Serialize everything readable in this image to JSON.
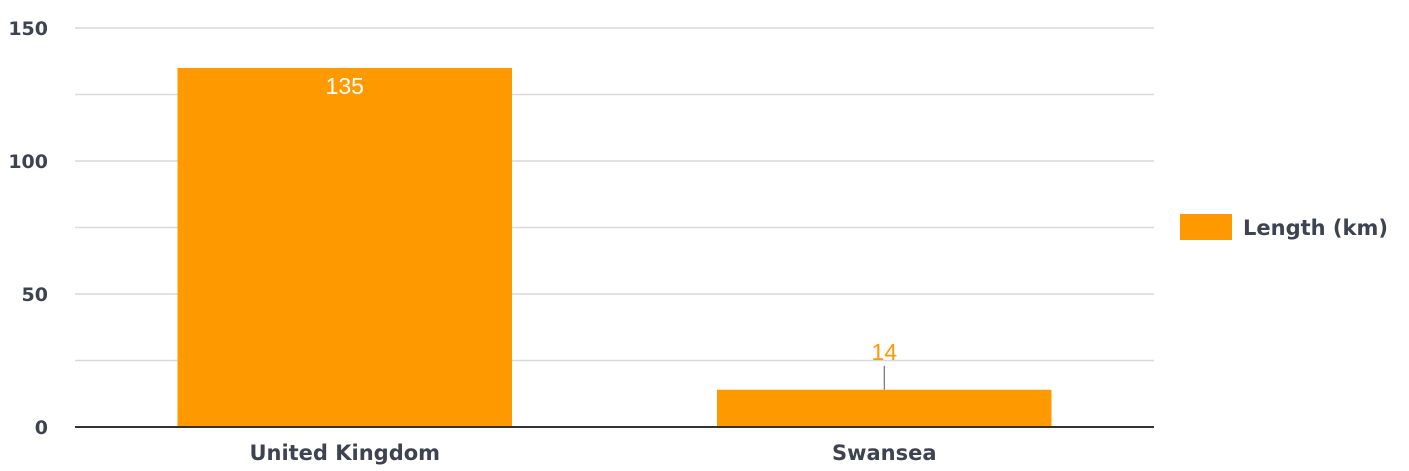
{
  "chart_data": {
    "type": "bar",
    "categories": [
      "United Kingdom",
      "Swansea"
    ],
    "series": [
      {
        "name": "Length (km)",
        "values": [
          135,
          14
        ],
        "color": "#ff9900"
      }
    ],
    "ylim": [
      0,
      150
    ],
    "yticks": [
      0,
      50,
      100,
      150
    ],
    "minor_grid_step": 25,
    "grid": true,
    "legend_position": "right",
    "data_labels": true
  },
  "colors": {
    "bar": "#ff9900",
    "grid": "#d9d9d9",
    "axis": "#333333",
    "text": "#3d4350"
  }
}
